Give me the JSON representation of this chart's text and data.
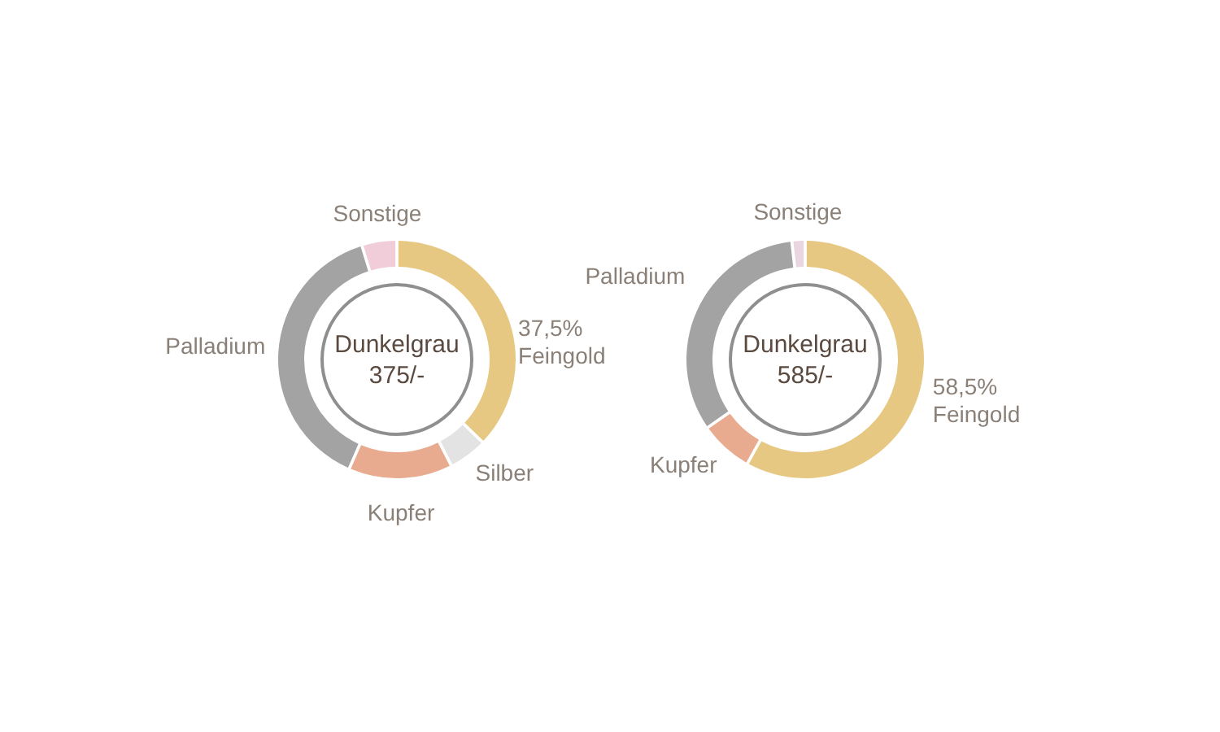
{
  "chart_data": [
    {
      "type": "donut",
      "categories": [
        "Feingold",
        "Silber",
        "Kupfer",
        "Palladium",
        "Sonstige"
      ],
      "values": [
        37.5,
        5,
        14,
        39,
        4.5
      ],
      "colors": [
        "#e6c882",
        "#e3e3e3",
        "#e9ab8f",
        "#a3a3a3",
        "#f0cdd8"
      ],
      "value_labels": [
        "37,5%",
        null,
        null,
        null,
        null
      ],
      "annotations": [
        "Dunkelgrau",
        "375/-"
      ]
    },
    {
      "type": "donut",
      "categories": [
        "Feingold",
        "Kupfer",
        "Palladium",
        "Sonstige"
      ],
      "values": [
        58.5,
        7,
        33,
        1.5
      ],
      "colors": [
        "#e6c882",
        "#e9ab8f",
        "#a3a3a3",
        "#ead6e0"
      ],
      "value_labels": [
        "58,5%",
        null,
        null,
        null
      ],
      "annotations": [
        "Dunkelgrau",
        "585/-"
      ]
    }
  ]
}
